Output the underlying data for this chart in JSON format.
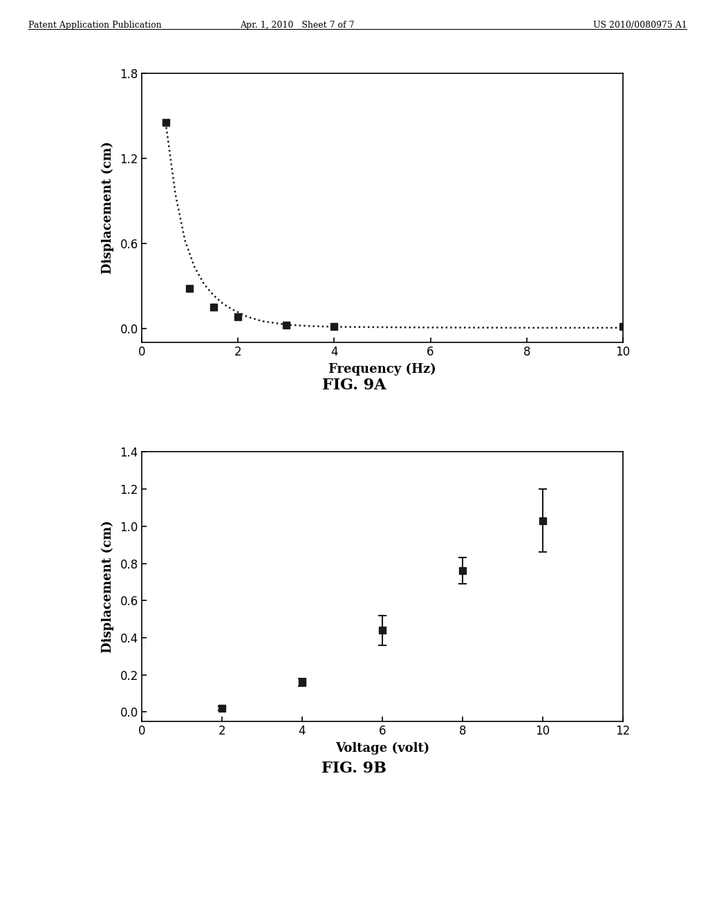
{
  "fig9a": {
    "x": [
      0.5,
      1.0,
      1.5,
      2.0,
      3.0,
      4.0,
      10.0
    ],
    "y": [
      1.45,
      0.28,
      0.15,
      0.08,
      0.02,
      0.01,
      0.01
    ],
    "curve_x": [
      0.5,
      0.7,
      0.9,
      1.1,
      1.3,
      1.5,
      1.7,
      1.9,
      2.2,
      2.5,
      3.0,
      3.5,
      4.0,
      5.0,
      6.0,
      7.0,
      8.0,
      9.0,
      10.0
    ],
    "curve_y": [
      1.45,
      0.95,
      0.62,
      0.43,
      0.31,
      0.23,
      0.17,
      0.13,
      0.08,
      0.05,
      0.025,
      0.015,
      0.01,
      0.007,
      0.005,
      0.004,
      0.003,
      0.003,
      0.003
    ],
    "xlabel": "Frequency (Hz)",
    "ylabel": "Displacement (cm)",
    "xlim": [
      0,
      10
    ],
    "ylim": [
      -0.1,
      1.8
    ],
    "xticks": [
      0,
      2,
      4,
      6,
      8,
      10
    ],
    "yticks": [
      0.0,
      0.6,
      1.2,
      1.8
    ],
    "caption": "FIG. 9A"
  },
  "fig9b": {
    "x": [
      2,
      4,
      6,
      8,
      10
    ],
    "y": [
      0.02,
      0.16,
      0.44,
      0.76,
      1.03
    ],
    "yerr": [
      0.01,
      0.02,
      0.08,
      0.07,
      0.17
    ],
    "xlabel": "Voltage (volt)",
    "ylabel": "Displacement (cm)",
    "xlim": [
      0,
      12
    ],
    "ylim": [
      -0.05,
      1.4
    ],
    "xticks": [
      0,
      2,
      4,
      6,
      8,
      10,
      12
    ],
    "yticks": [
      0,
      0.2,
      0.4,
      0.6,
      0.8,
      1.0,
      1.2,
      1.4
    ],
    "caption": "FIG. 9B"
  },
  "header_left": "Patent Application Publication",
  "header_center": "Apr. 1, 2010   Sheet 7 of 7",
  "header_right": "US 2010/0080975 A1",
  "background_color": "#ffffff",
  "marker_color": "#1a1a1a",
  "marker_size": 7,
  "dotted_line_color": "#1a1a1a"
}
